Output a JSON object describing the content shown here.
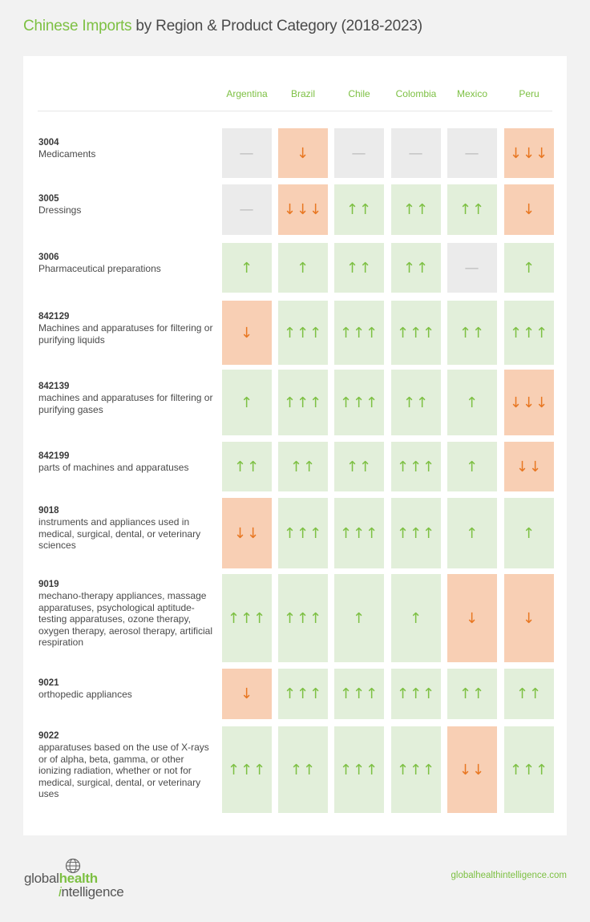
{
  "title": {
    "accent": "Chinese Imports",
    "rest": " by Region & Product Category (2018-2023)"
  },
  "colors": {
    "accent": "#7dc043",
    "up_bg": "#e2efda",
    "down_bg": "#f8cfb4",
    "down_fg": "#e87722",
    "none_bg": "#ebebeb"
  },
  "chart_data": {
    "type": "table",
    "columns": [
      "Argentina",
      "Brazil",
      "Chile",
      "Colombia",
      "Mexico",
      "Peru"
    ],
    "symbols": {
      "up": "↑",
      "down": "↓",
      "none": "—"
    },
    "rows": [
      {
        "code": "3004",
        "desc": "Medicaments",
        "values": [
          0,
          -1,
          0,
          0,
          0,
          -3
        ]
      },
      {
        "code": "3005",
        "desc": "Dressings",
        "values": [
          0,
          -3,
          2,
          2,
          2,
          -1
        ]
      },
      {
        "code": "3006",
        "desc": "Pharmaceutical preparations",
        "values": [
          1,
          1,
          2,
          2,
          0,
          1
        ]
      },
      {
        "code": "842129",
        "desc": "Machines and apparatuses for filtering or purifying liquids",
        "values": [
          -1,
          3,
          3,
          3,
          2,
          3
        ]
      },
      {
        "code": "842139",
        "desc": "machines and apparatuses for filtering or purifying gases",
        "values": [
          1,
          3,
          3,
          2,
          1,
          -3
        ]
      },
      {
        "code": "842199",
        "desc": "parts of machines and apparatuses",
        "values": [
          2,
          2,
          2,
          3,
          1,
          -2
        ]
      },
      {
        "code": "9018",
        "desc": "instruments and appliances used in medical, surgical, dental, or veterinary sciences",
        "values": [
          -2,
          3,
          3,
          3,
          1,
          1
        ]
      },
      {
        "code": "9019",
        "desc": "mechano-therapy appliances, massage apparatuses, psychological aptitude-testing apparatuses, ozone therapy, oxygen therapy, aerosol therapy, artificial respiration",
        "values": [
          3,
          3,
          1,
          1,
          -1,
          -1
        ]
      },
      {
        "code": "9021",
        "desc": "orthopedic appliances",
        "values": [
          -1,
          3,
          3,
          3,
          2,
          2
        ]
      },
      {
        "code": "9022",
        "desc": "apparatuses based on the use of X-rays or of alpha, beta, gamma, or other ionizing radiation, whether or not for medical, surgical, dental, or veterinary uses",
        "values": [
          3,
          2,
          3,
          3,
          -2,
          3
        ]
      }
    ]
  },
  "footer": {
    "logo_part1": "global",
    "logo_part2": "health",
    "logo_part3_i": "i",
    "logo_part3_rest": "ntelligence",
    "logo_icon": "globe-icon",
    "url": "globalhealthintelligence.com"
  }
}
